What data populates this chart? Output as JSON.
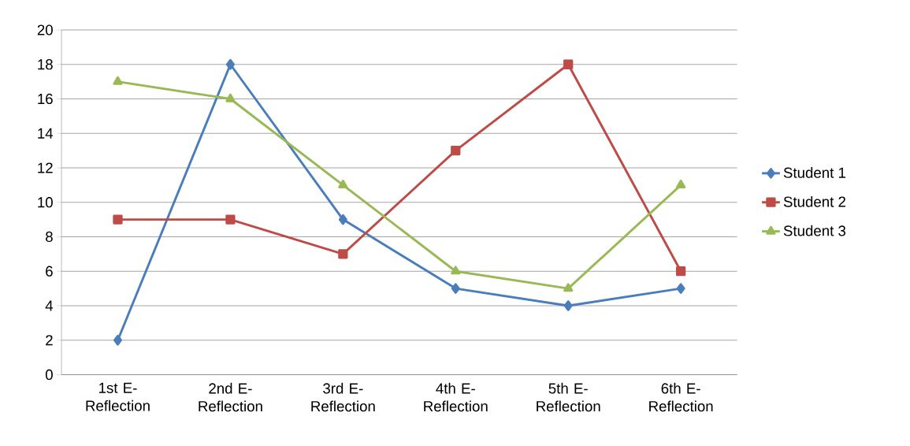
{
  "chart_data": {
    "type": "line",
    "categories": [
      "1st E-Reflection",
      "2nd E-Reflection",
      "3rd E-Reflection",
      "4th E-Reflection",
      "5th E-Reflection",
      "6th E-Reflection"
    ],
    "series": [
      {
        "name": "Student 1",
        "color": "#4a7ebb",
        "marker": "diamond",
        "values": [
          2,
          18,
          9,
          5,
          4,
          5
        ]
      },
      {
        "name": "Student 2",
        "color": "#be4b48",
        "marker": "square",
        "values": [
          9,
          9,
          7,
          13,
          18,
          6
        ]
      },
      {
        "name": "Student 3",
        "color": "#98b954",
        "marker": "triangle",
        "values": [
          17,
          16,
          11,
          6,
          5,
          11
        ]
      }
    ],
    "ylim": [
      0,
      20
    ],
    "yticks": [
      0,
      2,
      4,
      6,
      8,
      10,
      12,
      14,
      16,
      18,
      20
    ],
    "grid": "y",
    "legend": "right",
    "line_style": "solid"
  }
}
